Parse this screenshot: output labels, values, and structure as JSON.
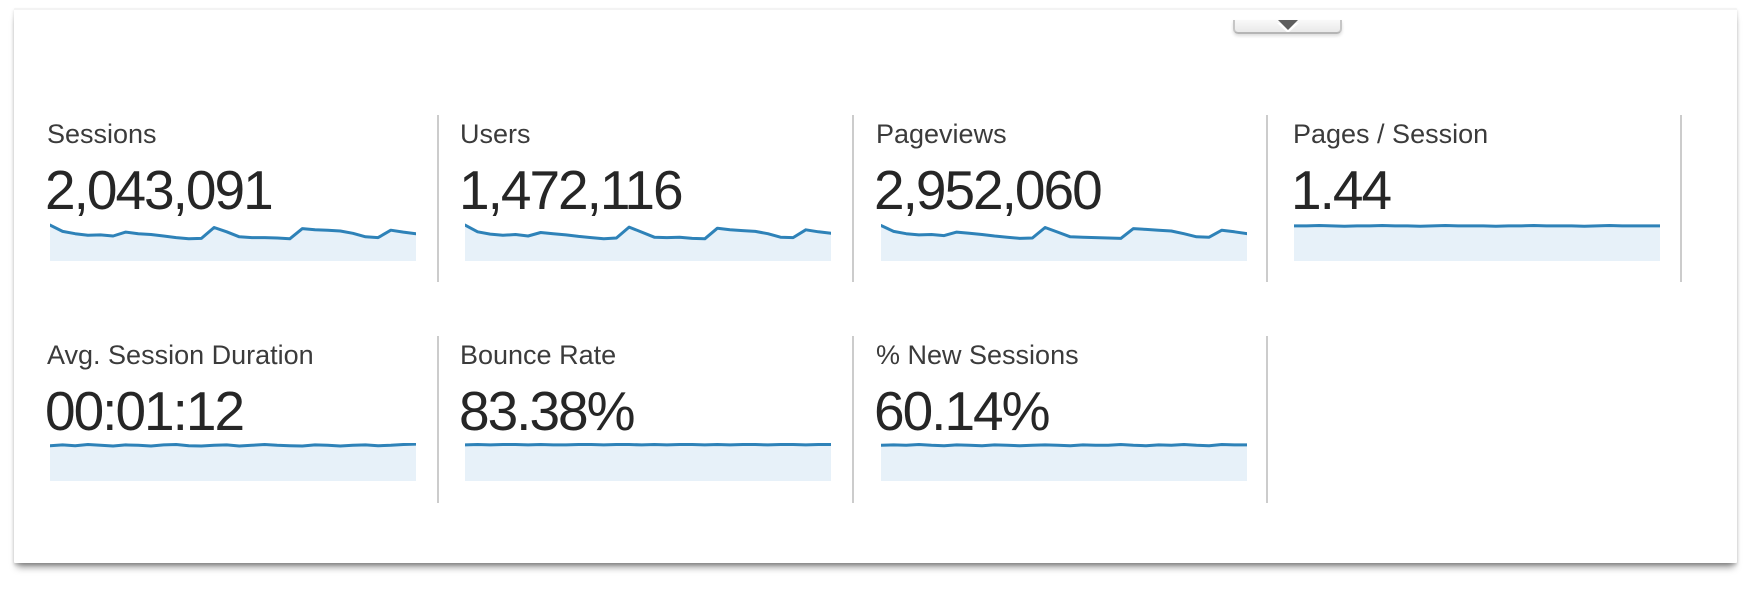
{
  "panel": {
    "collapse_button": {
      "icon": "collapse-arrow-down"
    },
    "colors": {
      "spark_line": "#2e82b8",
      "spark_fill": "#e7f1f9",
      "divider": "#cccccc",
      "label_text": "#3b3b3b",
      "value_text": "#262626"
    },
    "rows": [
      {
        "metrics": [
          {
            "label": "Sessions",
            "value": "2,043,091",
            "spark": [
              92,
              76,
              70,
              66,
              67,
              64,
              74,
              70,
              68,
              64,
              60,
              57,
              58,
              86,
              75,
              62,
              60,
              60,
              59,
              57,
              83,
              80,
              79,
              77,
              71,
              62,
              60,
              79,
              74,
              70
            ]
          },
          {
            "label": "Users",
            "value": "1,472,116",
            "spark": [
              92,
              75,
              69,
              66,
              68,
              64,
              73,
              70,
              67,
              63,
              60,
              57,
              59,
              87,
              74,
              61,
              60,
              61,
              58,
              57,
              84,
              80,
              78,
              76,
              70,
              61,
              60,
              80,
              75,
              71
            ]
          },
          {
            "label": "Pageviews",
            "value": "2,952,060",
            "spark": [
              91,
              76,
              70,
              67,
              68,
              65,
              74,
              71,
              68,
              64,
              61,
              58,
              59,
              86,
              74,
              62,
              61,
              60,
              59,
              58,
              83,
              81,
              79,
              77,
              70,
              62,
              61,
              79,
              75,
              70
            ]
          },
          {
            "label": "Pages / Session",
            "value": "1.44",
            "spark": [
              90,
              90,
              91,
              90,
              89,
              90,
              90,
              91,
              90,
              90,
              89,
              90,
              91,
              90,
              90,
              90,
              89,
              90,
              90,
              91,
              90,
              90,
              90,
              89,
              90,
              91,
              90,
              90,
              90,
              90
            ]
          }
        ]
      },
      {
        "metrics": [
          {
            "label": "Avg. Session Duration",
            "value": "00:01:12",
            "spark": [
              93,
              95,
              93,
              96,
              94,
              92,
              95,
              94,
              92,
              95,
              96,
              93,
              92,
              94,
              95,
              92,
              94,
              96,
              94,
              93,
              92,
              95,
              94,
              92,
              94,
              95,
              93,
              94,
              96,
              97
            ]
          },
          {
            "label": "Bounce Rate",
            "value": "83.38%",
            "spark": [
              95,
              96,
              95,
              96,
              96,
              95,
              96,
              95,
              95,
              96,
              96,
              95,
              96,
              96,
              95,
              96,
              95,
              96,
              96,
              95,
              96,
              95,
              96,
              96,
              95,
              96,
              96,
              95,
              96,
              96
            ]
          },
          {
            "label": "% New Sessions",
            "value": "60.14%",
            "spark": [
              94,
              95,
              94,
              96,
              94,
              93,
              95,
              94,
              93,
              95,
              94,
              93,
              94,
              95,
              94,
              93,
              95,
              94,
              94,
              96,
              94,
              93,
              95,
              94,
              96,
              94,
              93,
              96,
              95,
              95
            ]
          }
        ]
      }
    ]
  },
  "chart_data": [
    {
      "type": "area",
      "title": "Sessions",
      "ylim": [
        0,
        100
      ],
      "grid": false,
      "legend": "none",
      "values": [
        92,
        76,
        70,
        66,
        67,
        64,
        74,
        70,
        68,
        64,
        60,
        57,
        58,
        86,
        75,
        62,
        60,
        60,
        59,
        57,
        83,
        80,
        79,
        77,
        71,
        62,
        60,
        79,
        74,
        70
      ]
    },
    {
      "type": "area",
      "title": "Users",
      "ylim": [
        0,
        100
      ],
      "grid": false,
      "legend": "none",
      "values": [
        92,
        75,
        69,
        66,
        68,
        64,
        73,
        70,
        67,
        63,
        60,
        57,
        59,
        87,
        74,
        61,
        60,
        61,
        58,
        57,
        84,
        80,
        78,
        76,
        70,
        61,
        60,
        80,
        75,
        71
      ]
    },
    {
      "type": "area",
      "title": "Pageviews",
      "ylim": [
        0,
        100
      ],
      "grid": false,
      "legend": "none",
      "values": [
        91,
        76,
        70,
        67,
        68,
        65,
        74,
        71,
        68,
        64,
        61,
        58,
        59,
        86,
        74,
        62,
        61,
        60,
        59,
        58,
        83,
        81,
        79,
        77,
        70,
        62,
        61,
        79,
        75,
        70
      ]
    },
    {
      "type": "area",
      "title": "Pages / Session",
      "ylim": [
        0,
        100
      ],
      "grid": false,
      "legend": "none",
      "values": [
        90,
        90,
        91,
        90,
        89,
        90,
        90,
        91,
        90,
        90,
        89,
        90,
        91,
        90,
        90,
        90,
        89,
        90,
        90,
        91,
        90,
        90,
        90,
        89,
        90,
        91,
        90,
        90,
        90,
        90
      ]
    },
    {
      "type": "area",
      "title": "Avg. Session Duration",
      "ylim": [
        0,
        100
      ],
      "grid": false,
      "legend": "none",
      "values": [
        93,
        95,
        93,
        96,
        94,
        92,
        95,
        94,
        92,
        95,
        96,
        93,
        92,
        94,
        95,
        92,
        94,
        96,
        94,
        93,
        92,
        95,
        94,
        92,
        94,
        95,
        93,
        94,
        96,
        97
      ]
    },
    {
      "type": "area",
      "title": "Bounce Rate",
      "ylim": [
        0,
        100
      ],
      "grid": false,
      "legend": "none",
      "values": [
        95,
        96,
        95,
        96,
        96,
        95,
        96,
        95,
        95,
        96,
        96,
        95,
        96,
        96,
        95,
        96,
        95,
        96,
        96,
        95,
        96,
        95,
        96,
        96,
        95,
        96,
        96,
        95,
        96,
        96
      ]
    },
    {
      "type": "area",
      "title": "% New Sessions",
      "ylim": [
        0,
        100
      ],
      "grid": false,
      "legend": "none",
      "values": [
        94,
        95,
        94,
        96,
        94,
        93,
        95,
        94,
        93,
        95,
        94,
        93,
        94,
        95,
        94,
        93,
        95,
        94,
        94,
        96,
        94,
        93,
        95,
        94,
        96,
        94,
        93,
        96,
        95,
        95
      ]
    }
  ]
}
